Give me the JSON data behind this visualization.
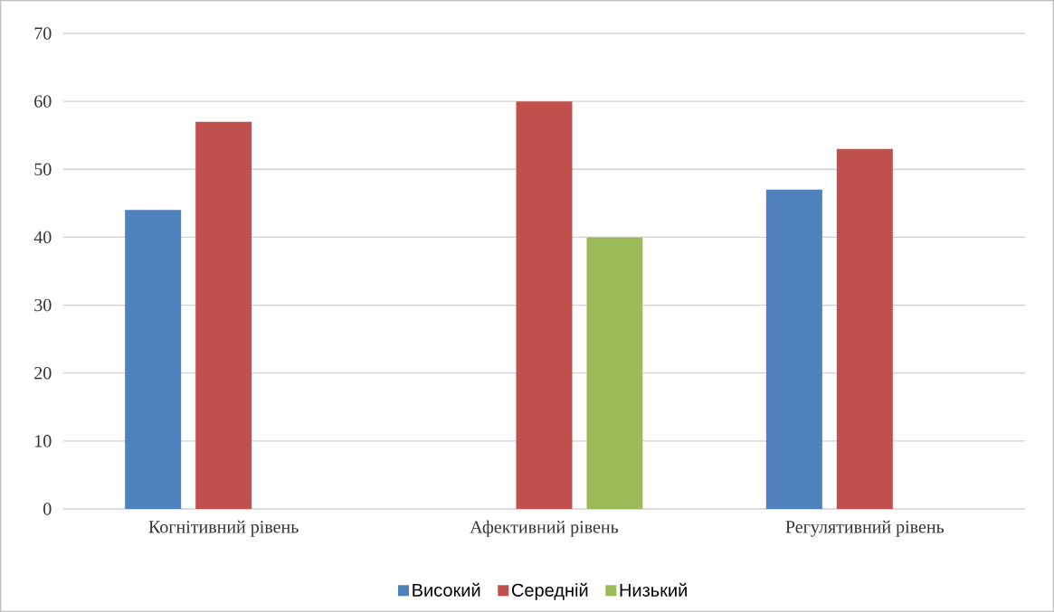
{
  "chart_data": {
    "type": "bar",
    "categories": [
      "Когнітивний рівень",
      "Афективний рівень",
      "Регулятивний рівень"
    ],
    "series": [
      {
        "name": "Високий",
        "color": "#4f81bd",
        "values": [
          44,
          null,
          47
        ]
      },
      {
        "name": "Середній",
        "color": "#c0504d",
        "values": [
          57,
          60,
          53
        ]
      },
      {
        "name": "Низький",
        "color": "#9bbb59",
        "values": [
          null,
          40,
          null
        ]
      }
    ],
    "ylim": [
      0,
      70
    ],
    "yticks": [
      0,
      10,
      20,
      30,
      40,
      50,
      60,
      70
    ],
    "grid": "y",
    "legend": "bottom"
  }
}
